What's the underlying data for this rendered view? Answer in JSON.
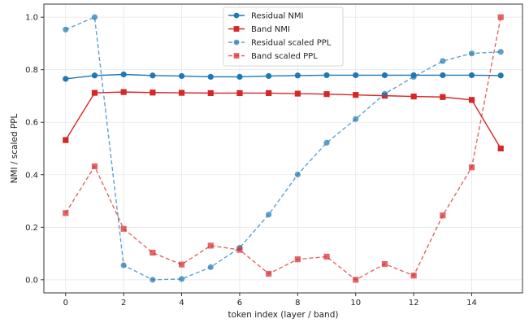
{
  "chart_data": {
    "type": "line",
    "xlabel": "token index (layer / band)",
    "ylabel": "NMI / scaled PPL",
    "xlim": [
      -0.75,
      15.75
    ],
    "ylim": [
      -0.05,
      1.05
    ],
    "x_ticks": [
      0,
      2,
      4,
      6,
      8,
      10,
      12,
      14
    ],
    "y_ticks": [
      0.0,
      0.2,
      0.4,
      0.6,
      0.8,
      1.0
    ],
    "grid": true,
    "legend_position": "top-center",
    "x": [
      0,
      1,
      2,
      3,
      4,
      5,
      6,
      7,
      8,
      9,
      10,
      11,
      12,
      13,
      14,
      15
    ],
    "series": [
      {
        "name": "Residual NMI",
        "color": "#1f77b4",
        "line_style": "solid",
        "marker": "circle",
        "values": [
          0.765,
          0.778,
          0.782,
          0.778,
          0.776,
          0.773,
          0.773,
          0.776,
          0.778,
          0.779,
          0.779,
          0.779,
          0.779,
          0.779,
          0.779,
          0.778
        ]
      },
      {
        "name": "Band NMI",
        "color": "#d62728",
        "line_style": "solid",
        "marker": "square",
        "values": [
          0.532,
          0.712,
          0.715,
          0.713,
          0.712,
          0.711,
          0.711,
          0.711,
          0.709,
          0.707,
          0.704,
          0.701,
          0.698,
          0.696,
          0.685,
          0.5
        ]
      },
      {
        "name": "Residual scaled PPL",
        "color": "#1f77b4",
        "line_style": "dashed",
        "marker": "circle",
        "alpha": 0.7,
        "values": [
          0.953,
          1.0,
          0.055,
          0.0,
          0.003,
          0.048,
          0.122,
          0.248,
          0.401,
          0.522,
          0.612,
          0.708,
          0.773,
          0.833,
          0.862,
          0.868
        ]
      },
      {
        "name": "Band scaled PPL",
        "color": "#d62728",
        "line_style": "dashed",
        "marker": "square",
        "alpha": 0.7,
        "values": [
          0.254,
          0.432,
          0.194,
          0.103,
          0.058,
          0.13,
          0.114,
          0.023,
          0.078,
          0.088,
          0.0,
          0.06,
          0.016,
          0.245,
          0.428,
          1.0
        ]
      }
    ]
  }
}
